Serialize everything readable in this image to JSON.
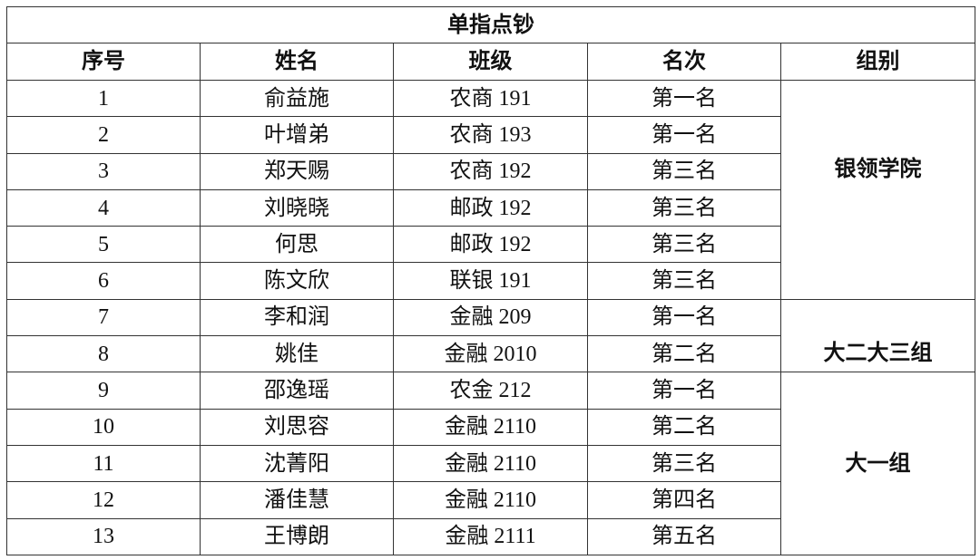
{
  "title": "单指点钞",
  "headers": [
    "序号",
    "姓名",
    "班级",
    "名次",
    "组别"
  ],
  "rows": [
    [
      "1",
      "俞益施",
      "农商 191",
      "第一名"
    ],
    [
      "2",
      "叶增弟",
      "农商 193",
      "第一名"
    ],
    [
      "3",
      "郑天赐",
      "农商 192",
      "第三名"
    ],
    [
      "4",
      "刘晓晓",
      "邮政 192",
      "第三名"
    ],
    [
      "5",
      "何思",
      "邮政 192",
      "第三名"
    ],
    [
      "6",
      "陈文欣",
      "联银 191",
      "第三名"
    ],
    [
      "7",
      "李和润",
      "金融 209",
      "第一名"
    ],
    [
      "8",
      "姚佳",
      "金融 2010",
      "第二名"
    ],
    [
      "9",
      "邵逸瑶",
      "农金 212",
      "第一名"
    ],
    [
      "10",
      "刘思容",
      "金融 2110",
      "第二名"
    ],
    [
      "11",
      "沈菁阳",
      "金融 2110",
      "第三名"
    ],
    [
      "12",
      "潘佳慧",
      "金融 2110",
      "第四名"
    ],
    [
      "13",
      "王博朗",
      "金融 2111",
      "第五名"
    ]
  ],
  "groups": [
    {
      "label": "银领学院",
      "rows": 6
    },
    {
      "label": "大二大三组",
      "rows": 2
    },
    {
      "label": "大一组",
      "rows": 5
    }
  ]
}
